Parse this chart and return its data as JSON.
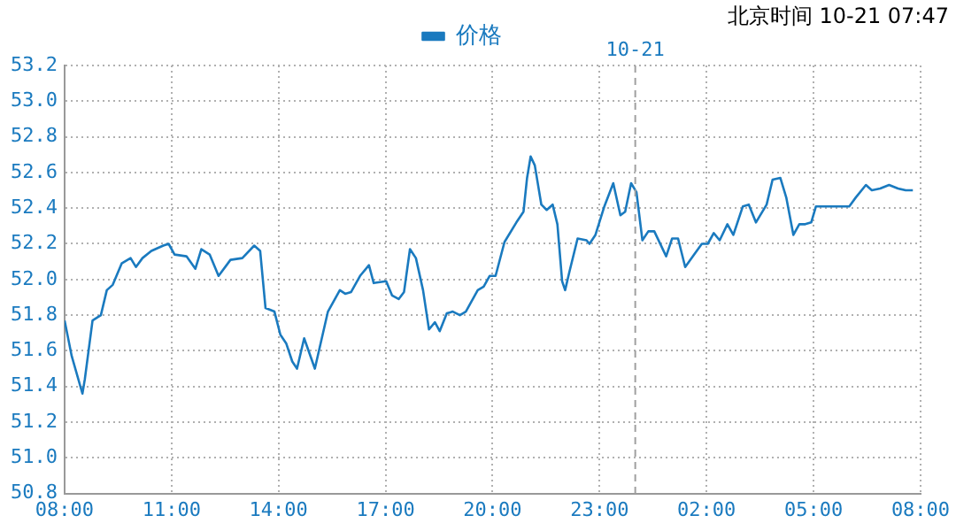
{
  "chart_data": {
    "type": "line",
    "annotations": [
      "北京时间 10-21 07:47"
    ],
    "xlim": [
      "--10-20T08:00",
      "--10-21T08:00"
    ],
    "xticks": [
      {
        "value": "--10-20T08:00",
        "label": "08:00"
      },
      {
        "value": "--10-20T11:00",
        "label": "11:00"
      },
      {
        "value": "--10-20T14:00",
        "label": "14:00"
      },
      {
        "value": "--10-20T17:00",
        "label": "17:00"
      },
      {
        "value": "--10-20T20:00",
        "label": "20:00"
      },
      {
        "value": "--10-20T23:00",
        "label": "23:00"
      },
      {
        "value": "--10-21T02:00",
        "label": "02:00"
      },
      {
        "value": "--10-21T05:00",
        "label": "05:00"
      },
      {
        "value": "--10-21T08:00",
        "label": "08:00"
      }
    ],
    "ylim": [
      50.8,
      53.2
    ],
    "yticks": [
      50.8,
      {
        "value": 51,
        "label": "51.0"
      },
      51.2,
      51.4,
      51.6,
      51.8,
      {
        "value": 52,
        "label": "52.0"
      },
      52.2,
      52.4,
      52.6,
      52.8,
      {
        "value": 53,
        "label": "53.0"
      },
      53.2
    ],
    "grid": true,
    "legend": "top",
    "marker": "none",
    "ref_lines": [
      {
        "axis": "x",
        "value": "--10-21",
        "label": "10-21",
        "color": "#a0a0a0",
        "line_style": "dashed"
      }
    ],
    "series": [
      {
        "name": "价格",
        "color": "#1a7abf",
        "line_style": "solid",
        "x": [
          "--10-20T08:00",
          "--10-20T08:12",
          "--10-20T08:30",
          "--10-20T08:34",
          "--10-20T08:47",
          "--10-20T09:01",
          "--10-20T09:11",
          "--10-20T09:21",
          "--10-20T09:36",
          "--10-20T09:51",
          "--10-20T10:00",
          "--10-20T10:11",
          "--10-20T10:26",
          "--10-20T10:46",
          "--10-20T10:55",
          "--10-20T11:05",
          "--10-20T11:25",
          "--10-20T11:40",
          "--10-20T11:50",
          "--10-20T12:04",
          "--10-20T12:19",
          "--10-20T12:39",
          "--10-20T12:59",
          "--10-20T13:19",
          "--10-20T13:29",
          "--10-20T13:38",
          "--10-20T13:53",
          "--10-20T14:03",
          "--10-20T14:13",
          "--10-20T14:23",
          "--10-20T14:31",
          "--10-20T14:43",
          "--10-20T15:01",
          "--10-20T15:23",
          "--10-20T15:43",
          "--10-20T15:52",
          "--10-20T16:02",
          "--10-20T16:17",
          "--10-20T16:32",
          "--10-20T16:40",
          "--10-20T17:01",
          "--10-20T17:11",
          "--10-20T17:22",
          "--10-20T17:31",
          "--10-20T17:41",
          "--10-20T17:51",
          "--10-20T18:03",
          "--10-20T18:13",
          "--10-20T18:23",
          "--10-20T18:31",
          "--10-20T18:43",
          "--10-20T18:53",
          "--10-20T19:05",
          "--10-20T19:15",
          "--10-20T19:35",
          "--10-20T19:45",
          "--10-20T19:55",
          "--10-20T20:05",
          "--10-20T20:20",
          "--10-20T20:40",
          "--10-20T20:52",
          "--10-20T20:58",
          "--10-20T21:04",
          "--10-20T21:11",
          "--10-20T21:22",
          "--10-20T21:31",
          "--10-20T21:41",
          "--10-20T21:49",
          "--10-20T21:57",
          "--10-20T22:02",
          "--10-20T22:09",
          "--10-20T22:23",
          "--10-20T22:38",
          "--10-20T22:43",
          "--10-20T22:53",
          "--10-20T23:08",
          "--10-20T23:23",
          "--10-20T23:35",
          "--10-20T23:43",
          "--10-20T23:53",
          "--10-21T00:02",
          "--10-21T00:12",
          "--10-21T00:22",
          "--10-21T00:32",
          "--10-21T00:52",
          "--10-21T01:02",
          "--10-21T01:12",
          "--10-21T01:24",
          "--10-21T01:37",
          "--10-21T01:52",
          "--10-21T02:02",
          "--10-21T02:12",
          "--10-21T02:22",
          "--10-21T02:35",
          "--10-21T02:45",
          "--10-21T03:01",
          "--10-21T03:11",
          "--10-21T03:23",
          "--10-21T03:41",
          "--10-21T03:51",
          "--10-21T04:04",
          "--10-21T04:14",
          "--10-21T04:26",
          "--10-21T04:36",
          "--10-21T04:46",
          "--10-21T04:56",
          "--10-21T05:04",
          "--10-21T06:00",
          "--10-21T06:11",
          "--10-21T06:28",
          "--10-21T06:38",
          "--10-21T06:52",
          "--10-21T07:07",
          "--10-21T07:22",
          "--10-21T07:35",
          "--10-21T07:47"
        ],
        "values": [
          51.77,
          51.57,
          51.36,
          51.44,
          51.77,
          51.8,
          51.94,
          51.97,
          52.09,
          52.12,
          52.07,
          52.12,
          52.16,
          52.19,
          52.2,
          52.14,
          52.13,
          52.06,
          52.17,
          52.14,
          52.02,
          52.11,
          52.12,
          52.19,
          52.16,
          51.84,
          51.82,
          51.69,
          51.64,
          51.54,
          51.5,
          51.67,
          51.5,
          51.82,
          51.94,
          51.92,
          51.93,
          52.02,
          52.08,
          51.98,
          51.99,
          51.91,
          51.89,
          51.93,
          52.17,
          52.12,
          51.94,
          51.72,
          51.76,
          51.71,
          51.81,
          51.82,
          51.8,
          51.82,
          51.94,
          51.96,
          52.02,
          52.02,
          52.21,
          52.32,
          52.38,
          52.57,
          52.69,
          52.64,
          52.42,
          52.39,
          52.42,
          52.31,
          51.99,
          51.94,
          52.04,
          52.23,
          52.22,
          52.2,
          52.25,
          52.41,
          52.54,
          52.36,
          52.38,
          52.54,
          52.49,
          52.22,
          52.27,
          52.27,
          52.13,
          52.23,
          52.23,
          52.07,
          52.13,
          52.2,
          52.2,
          52.26,
          52.22,
          52.31,
          52.25,
          52.41,
          52.42,
          52.32,
          52.42,
          52.56,
          52.57,
          52.46,
          52.25,
          52.31,
          52.31,
          52.32,
          52.41,
          52.41,
          52.46,
          52.53,
          52.5,
          52.51,
          52.53,
          52.51,
          52.5,
          52.5
        ]
      }
    ]
  }
}
